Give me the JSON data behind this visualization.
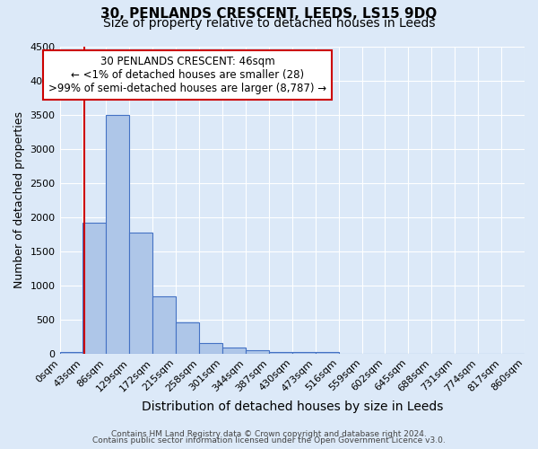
{
  "title_line1": "30, PENLANDS CRESCENT, LEEDS, LS15 9DQ",
  "title_line2": "Size of property relative to detached houses in Leeds",
  "xlabel": "Distribution of detached houses by size in Leeds",
  "ylabel": "Number of detached properties",
  "footnote1": "Contains HM Land Registry data © Crown copyright and database right 2024.",
  "footnote2": "Contains public sector information licensed under the Open Government Licence v3.0.",
  "bin_edges": [
    0,
    43,
    86,
    129,
    172,
    215,
    258,
    301,
    344,
    387,
    430,
    473,
    516,
    559,
    602,
    645,
    688,
    731,
    774,
    817,
    860
  ],
  "bar_heights": [
    28,
    1920,
    3490,
    1775,
    840,
    455,
    160,
    90,
    50,
    30,
    20,
    20,
    0,
    0,
    0,
    0,
    0,
    0,
    0,
    0
  ],
  "bar_color": "#aec6e8",
  "bar_edge_color": "#4472c4",
  "property_line_x": 46,
  "property_line_color": "#cc0000",
  "ylim": [
    0,
    4500
  ],
  "annotation_line1": "30 PENLANDS CRESCENT: 46sqm",
  "annotation_line2": "← <1% of detached houses are smaller (28)",
  "annotation_line3": ">99% of semi-detached houses are larger (8,787) →",
  "annotation_box_color": "#ffffff",
  "annotation_box_edge_color": "#cc0000",
  "background_color": "#dce9f8",
  "grid_color": "#ffffff",
  "title_fontsize": 11,
  "subtitle_fontsize": 10,
  "tick_label_fontsize": 8,
  "ylabel_fontsize": 9,
  "xlabel_fontsize": 10,
  "annot_fontsize": 8.5
}
